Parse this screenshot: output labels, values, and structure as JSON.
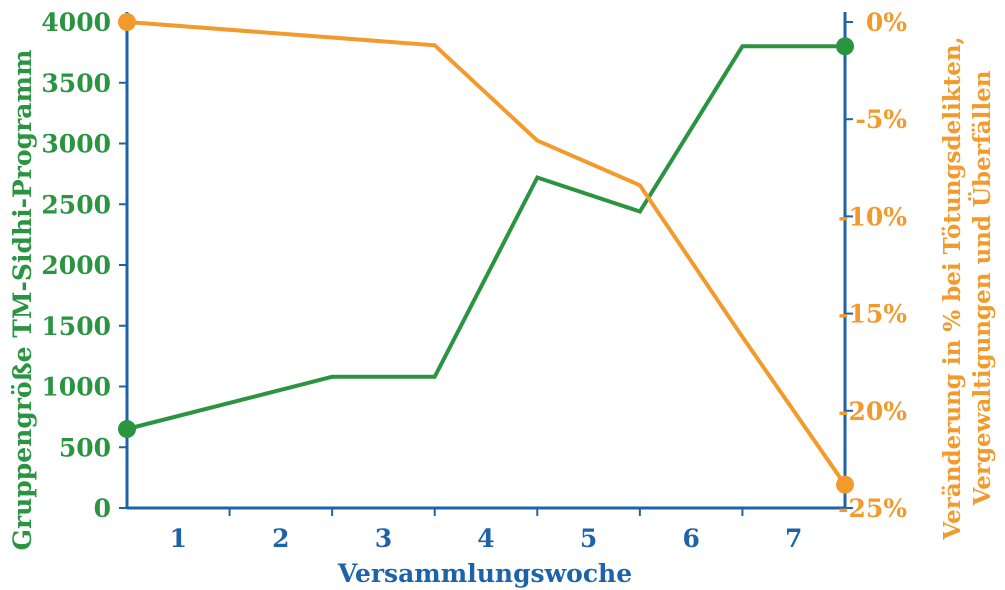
{
  "chart_data": {
    "type": "line",
    "x_categories": [
      "1",
      "2",
      "3",
      "4",
      "5",
      "6",
      "7"
    ],
    "xlabel": "Versammlungswoche",
    "y_left": {
      "label": "Gruppengröße TM-Sidhi-Programm",
      "ticks": [
        "0",
        "500",
        "1000",
        "1500",
        "2000",
        "2500",
        "3000",
        "3500",
        "4000"
      ],
      "range": [
        0,
        4000
      ]
    },
    "y_right": {
      "label_lines": [
        "Veränderung in % bei Tötungsdelikten,",
        "Vergewaltigungen und Überfällen"
      ],
      "ticks": [
        "0%",
        "-5%",
        "-10%",
        "-15%",
        "-20%",
        "-25%"
      ],
      "range": [
        -25,
        0
      ]
    },
    "series": [
      {
        "axis": "left",
        "color": "#2a9441",
        "x": [
          0,
          2,
          3,
          4,
          5,
          6,
          7
        ],
        "values": [
          650,
          1080,
          1080,
          2720,
          2440,
          3800,
          3800
        ]
      },
      {
        "axis": "right",
        "color": "#f39a2c",
        "x": [
          0,
          3,
          4,
          5,
          6,
          7
        ],
        "values": [
          0,
          -1.2,
          -6.1,
          -8.4,
          -16.2,
          -23.8
        ]
      }
    ],
    "axis_color": "#1e63a8",
    "grid": false
  }
}
